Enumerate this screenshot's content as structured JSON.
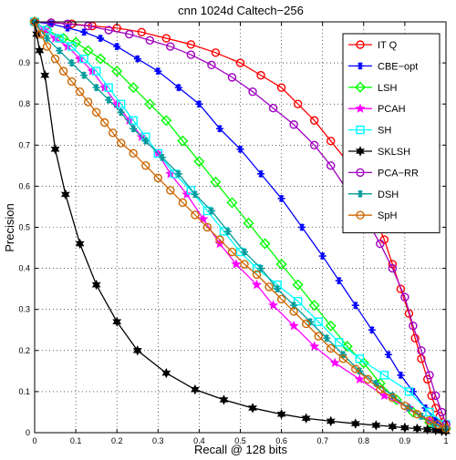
{
  "chart_data": {
    "type": "line",
    "title": "cnn 1024d Caltech−256",
    "xlabel": "Recall @ 128 bits",
    "ylabel": "Precision",
    "xlim": [
      0,
      1
    ],
    "ylim": [
      0,
      1
    ],
    "grid": true,
    "legend_position": "top-right",
    "x_ticks": [
      "0",
      "0.1",
      "0.2",
      "0.3",
      "0.4",
      "0.5",
      "0.6",
      "0.7",
      "0.8",
      "0.9",
      "1"
    ],
    "y_ticks": [
      "0",
      "0.1",
      "0.2",
      "0.3",
      "0.4",
      "0.5",
      "0.6",
      "0.7",
      "0.8",
      "0.9"
    ],
    "series": [
      {
        "name": "IT Q",
        "color": "#ff0000",
        "marker": "circle",
        "x": [
          0,
          0.04,
          0.09,
          0.14,
          0.2,
          0.26,
          0.32,
          0.38,
          0.44,
          0.5,
          0.55,
          0.6,
          0.64,
          0.68,
          0.72,
          0.76,
          0.79,
          0.82,
          0.85,
          0.87,
          0.89,
          0.91,
          0.925,
          0.94,
          0.955,
          0.965,
          0.975,
          0.985,
          0.995,
          1.0
        ],
        "y": [
          1.0,
          0.998,
          0.995,
          0.99,
          0.985,
          0.975,
          0.96,
          0.945,
          0.925,
          0.9,
          0.87,
          0.84,
          0.8,
          0.76,
          0.71,
          0.66,
          0.6,
          0.54,
          0.47,
          0.41,
          0.35,
          0.29,
          0.23,
          0.18,
          0.13,
          0.09,
          0.06,
          0.04,
          0.02,
          0.01
        ]
      },
      {
        "name": "CBE−opt",
        "color": "#0000ff",
        "marker": "asterisk",
        "x": [
          0,
          0.04,
          0.08,
          0.12,
          0.16,
          0.2,
          0.25,
          0.3,
          0.35,
          0.4,
          0.45,
          0.5,
          0.55,
          0.6,
          0.65,
          0.7,
          0.74,
          0.78,
          0.82,
          0.86,
          0.89,
          0.92,
          0.95,
          0.975,
          1.0
        ],
        "y": [
          1.0,
          0.995,
          0.985,
          0.975,
          0.96,
          0.94,
          0.91,
          0.88,
          0.84,
          0.8,
          0.74,
          0.69,
          0.63,
          0.57,
          0.5,
          0.43,
          0.37,
          0.31,
          0.25,
          0.19,
          0.14,
          0.1,
          0.06,
          0.03,
          0.01
        ]
      },
      {
        "name": "LSH",
        "color": "#00ff00",
        "marker": "diamond",
        "x": [
          0,
          0.03,
          0.07,
          0.1,
          0.13,
          0.16,
          0.2,
          0.24,
          0.28,
          0.32,
          0.36,
          0.4,
          0.44,
          0.48,
          0.52,
          0.56,
          0.6,
          0.64,
          0.68,
          0.72,
          0.76,
          0.8,
          0.84,
          0.88,
          0.92,
          0.96,
          1.0
        ],
        "y": [
          1.0,
          0.98,
          0.96,
          0.95,
          0.93,
          0.91,
          0.88,
          0.84,
          0.8,
          0.76,
          0.71,
          0.66,
          0.61,
          0.56,
          0.51,
          0.46,
          0.41,
          0.36,
          0.31,
          0.26,
          0.21,
          0.17,
          0.12,
          0.08,
          0.05,
          0.025,
          0.01
        ]
      },
      {
        "name": "PCAH",
        "color": "#ff00ff",
        "marker": "star",
        "x": [
          0,
          0.025,
          0.05,
          0.08,
          0.11,
          0.14,
          0.17,
          0.2,
          0.23,
          0.26,
          0.3,
          0.33,
          0.37,
          0.41,
          0.45,
          0.49,
          0.54,
          0.58,
          0.63,
          0.68,
          0.73,
          0.79,
          0.85,
          0.91,
          0.96,
          1.0
        ],
        "y": [
          1.0,
          0.98,
          0.96,
          0.94,
          0.91,
          0.88,
          0.84,
          0.8,
          0.76,
          0.72,
          0.68,
          0.63,
          0.58,
          0.52,
          0.46,
          0.41,
          0.36,
          0.31,
          0.26,
          0.21,
          0.17,
          0.13,
          0.09,
          0.06,
          0.03,
          0.01
        ]
      },
      {
        "name": "SH",
        "color": "#00ffff",
        "marker": "square",
        "x": [
          0,
          0.03,
          0.06,
          0.09,
          0.12,
          0.15,
          0.18,
          0.21,
          0.24,
          0.27,
          0.3,
          0.34,
          0.38,
          0.42,
          0.46,
          0.5,
          0.54,
          0.59,
          0.64,
          0.69,
          0.74,
          0.79,
          0.85,
          0.91,
          0.96,
          1.0
        ],
        "y": [
          1.0,
          0.98,
          0.96,
          0.94,
          0.91,
          0.88,
          0.84,
          0.8,
          0.76,
          0.72,
          0.68,
          0.63,
          0.59,
          0.54,
          0.49,
          0.44,
          0.4,
          0.36,
          0.32,
          0.27,
          0.22,
          0.18,
          0.14,
          0.1,
          0.05,
          0.02
        ]
      },
      {
        "name": "SKLSH",
        "color": "#000000",
        "marker": "hexagram",
        "x": [
          0,
          0.005,
          0.012,
          0.025,
          0.05,
          0.075,
          0.11,
          0.15,
          0.2,
          0.25,
          0.32,
          0.39,
          0.46,
          0.53,
          0.6,
          0.66,
          0.72,
          0.78,
          0.83,
          0.87,
          0.9,
          0.93,
          0.955,
          0.975,
          0.99,
          1.0
        ],
        "y": [
          1.0,
          0.97,
          0.93,
          0.87,
          0.69,
          0.58,
          0.46,
          0.36,
          0.27,
          0.2,
          0.145,
          0.105,
          0.08,
          0.06,
          0.045,
          0.035,
          0.028,
          0.022,
          0.018,
          0.015,
          0.012,
          0.01,
          0.008,
          0.006,
          0.004,
          0.003
        ]
      },
      {
        "name": "PCA−RR",
        "color": "#a000c0",
        "marker": "circle",
        "x": [
          0,
          0.04,
          0.08,
          0.13,
          0.18,
          0.23,
          0.28,
          0.33,
          0.38,
          0.43,
          0.48,
          0.53,
          0.58,
          0.63,
          0.68,
          0.72,
          0.76,
          0.8,
          0.84,
          0.87,
          0.9,
          0.92,
          0.94,
          0.96,
          0.975,
          0.99,
          1.0
        ],
        "y": [
          1.0,
          0.998,
          0.995,
          0.99,
          0.98,
          0.97,
          0.955,
          0.94,
          0.92,
          0.895,
          0.865,
          0.83,
          0.79,
          0.75,
          0.7,
          0.65,
          0.59,
          0.53,
          0.46,
          0.4,
          0.33,
          0.26,
          0.2,
          0.14,
          0.09,
          0.05,
          0.02
        ]
      },
      {
        "name": "DSH",
        "color": "#009a9a",
        "marker": "asterisk",
        "x": [
          0,
          0.03,
          0.06,
          0.09,
          0.12,
          0.15,
          0.18,
          0.21,
          0.24,
          0.27,
          0.31,
          0.35,
          0.39,
          0.43,
          0.47,
          0.51,
          0.55,
          0.59,
          0.63,
          0.67,
          0.71,
          0.75,
          0.79,
          0.83,
          0.87,
          0.91,
          0.94,
          0.97,
          1.0
        ],
        "y": [
          1.0,
          0.96,
          0.93,
          0.9,
          0.87,
          0.84,
          0.81,
          0.78,
          0.74,
          0.71,
          0.67,
          0.63,
          0.58,
          0.54,
          0.49,
          0.44,
          0.4,
          0.35,
          0.31,
          0.27,
          0.23,
          0.19,
          0.15,
          0.12,
          0.09,
          0.06,
          0.04,
          0.02,
          0.01
        ]
      },
      {
        "name": "SpH",
        "color": "#cc6600",
        "marker": "circle",
        "x": [
          0,
          0.015,
          0.03,
          0.05,
          0.07,
          0.09,
          0.11,
          0.13,
          0.15,
          0.17,
          0.19,
          0.21,
          0.24,
          0.27,
          0.3,
          0.33,
          0.36,
          0.39,
          0.42,
          0.45,
          0.48,
          0.51,
          0.54,
          0.57,
          0.6,
          0.63,
          0.66,
          0.69,
          0.72,
          0.75,
          0.78,
          0.81,
          0.84,
          0.87,
          0.9,
          0.93,
          0.96,
          0.98,
          1.0
        ],
        "y": [
          1.0,
          0.97,
          0.94,
          0.91,
          0.88,
          0.855,
          0.83,
          0.805,
          0.78,
          0.755,
          0.73,
          0.705,
          0.68,
          0.65,
          0.62,
          0.59,
          0.56,
          0.53,
          0.5,
          0.47,
          0.44,
          0.41,
          0.385,
          0.355,
          0.325,
          0.295,
          0.265,
          0.235,
          0.205,
          0.18,
          0.155,
          0.13,
          0.105,
          0.085,
          0.065,
          0.045,
          0.03,
          0.02,
          0.01
        ]
      }
    ]
  }
}
